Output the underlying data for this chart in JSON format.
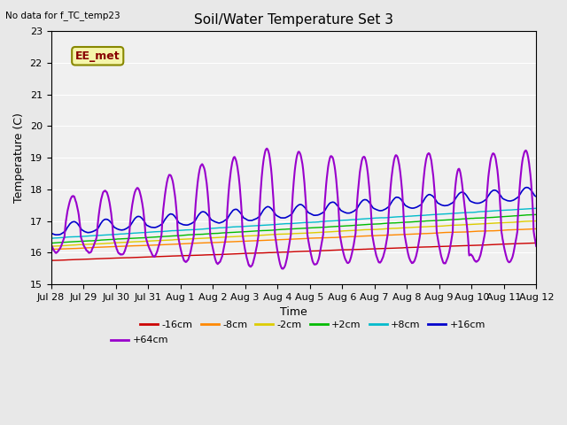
{
  "title": "Soil/Water Temperature Set 3",
  "xlabel": "Time",
  "ylabel": "Temperature (C)",
  "ylim": [
    15.0,
    23.0
  ],
  "yticks": [
    15.0,
    16.0,
    17.0,
    18.0,
    19.0,
    20.0,
    21.0,
    22.0,
    23.0
  ],
  "note": "No data for f_TC_temp23",
  "annotation": "EE_met",
  "fig_bg_color": "#e8e8e8",
  "plot_bg_color": "#f0f0f0",
  "grid_color": "#ffffff",
  "series_names": [
    "-16cm",
    "-8cm",
    "-2cm",
    "+2cm",
    "+8cm",
    "+16cm",
    "+64cm"
  ],
  "series_colors": [
    "#cc0000",
    "#ff8800",
    "#ddcc00",
    "#00bb00",
    "#00bbcc",
    "#0000cc",
    "#9900cc"
  ],
  "series_lw": [
    1.0,
    1.0,
    1.0,
    1.0,
    1.0,
    1.2,
    1.5
  ],
  "xtick_labels": [
    "Jul 28",
    "Jul 29",
    "Jul 30",
    "Jul 31",
    "Aug 1",
    "Aug 2",
    "Aug 3",
    "Aug 4",
    "Aug 5",
    "Aug 6",
    "Aug 7",
    "Aug 8",
    "Aug 9",
    "Aug 10",
    "Aug 11",
    "Aug 12"
  ]
}
